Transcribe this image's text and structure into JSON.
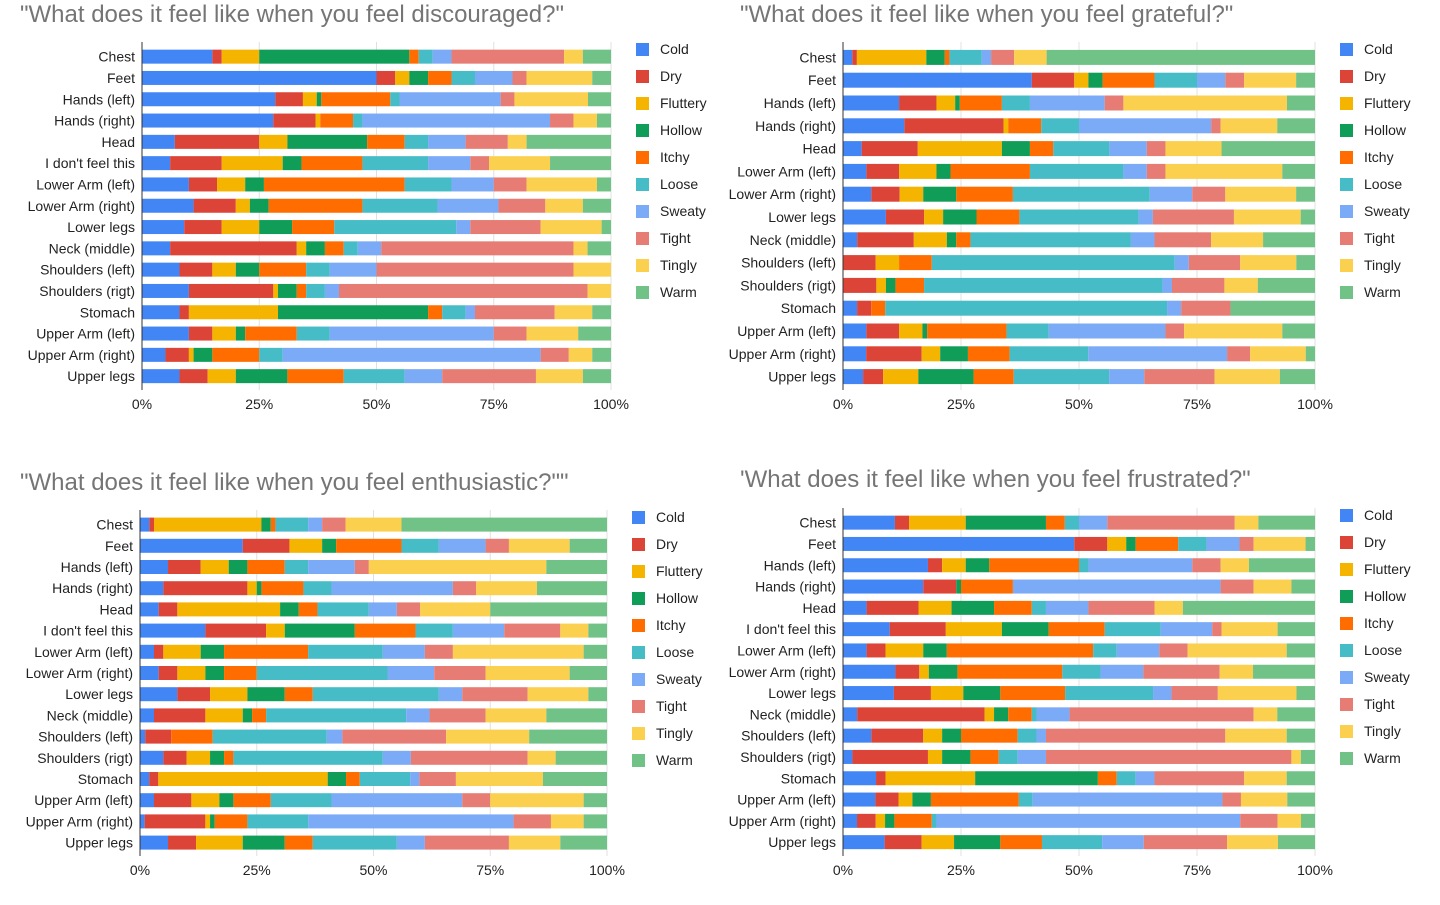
{
  "colors": [
    "#4285f4",
    "#db4437",
    "#f4b400",
    "#0f9d58",
    "#ff6d01",
    "#46bdc6",
    "#7baaf7",
    "#e67c73",
    "#fcd04f",
    "#71c287"
  ],
  "chart_data": [
    {
      "type": "bar",
      "stacked": "percent",
      "orientation": "horizontal",
      "title": "\"What does it feel like when you feel discouraged?\"",
      "legend_position": "right",
      "xlim": [
        0,
        100
      ],
      "x_ticks": [
        "0%",
        "25%",
        "50%",
        "75%",
        "100%"
      ],
      "categories": [
        "Chest",
        "Feet",
        "Hands (left)",
        "Hands (right)",
        "Head",
        "I don't feel this",
        "Lower Arm (left)",
        "Lower Arm (right)",
        "Lower legs",
        "Neck (middle)",
        "Shoulders (left)",
        "Shoulders (rigt)",
        "Stomach",
        "Upper Arm (left)",
        "Upper Arm (right)",
        "Upper legs"
      ],
      "series": [
        {
          "name": "Cold",
          "values": [
            15,
            50,
            29,
            28,
            7,
            6,
            10,
            11,
            9,
            6,
            8,
            10,
            8,
            10,
            5,
            8
          ]
        },
        {
          "name": "Dry",
          "values": [
            2,
            4,
            6,
            9,
            18,
            11,
            6,
            9,
            8,
            27,
            7,
            18,
            2,
            5,
            5,
            6
          ]
        },
        {
          "name": "Fluttery",
          "values": [
            8,
            3,
            3,
            1,
            6,
            13,
            6,
            3,
            8,
            2,
            5,
            1,
            19,
            5,
            1,
            6
          ]
        },
        {
          "name": "Hollow",
          "values": [
            32,
            4,
            1,
            0,
            17,
            4,
            4,
            4,
            7,
            4,
            5,
            4,
            32,
            2,
            4,
            11
          ]
        },
        {
          "name": "Itchy",
          "values": [
            2,
            5,
            15,
            7,
            8,
            13,
            30,
            20,
            9,
            4,
            10,
            2,
            3,
            11,
            10,
            12
          ]
        },
        {
          "name": "Loose",
          "values": [
            3,
            5,
            2,
            2,
            5,
            14,
            10,
            16,
            26,
            3,
            5,
            4,
            5,
            7,
            5,
            13
          ]
        },
        {
          "name": "Sweaty",
          "values": [
            4,
            8,
            22,
            40,
            8,
            9,
            9,
            13,
            3,
            5,
            10,
            3,
            2,
            35,
            55,
            8
          ]
        },
        {
          "name": "Tight",
          "values": [
            24,
            3,
            3,
            5,
            9,
            4,
            7,
            10,
            15,
            41,
            42,
            53,
            17,
            7,
            6,
            20
          ]
        },
        {
          "name": "Tingly",
          "values": [
            4,
            14,
            16,
            5,
            4,
            13,
            15,
            8,
            13,
            3,
            8,
            5,
            8,
            11,
            5,
            10
          ]
        },
        {
          "name": "Warm",
          "values": [
            6,
            4,
            5,
            3,
            18,
            13,
            3,
            6,
            2,
            5,
            0,
            0,
            4,
            7,
            4,
            6
          ]
        }
      ]
    },
    {
      "type": "bar",
      "stacked": "percent",
      "orientation": "horizontal",
      "title": "\"What does it feel like when you feel grateful?\"",
      "legend_position": "right",
      "xlim": [
        0,
        100
      ],
      "x_ticks": [
        "0%",
        "25%",
        "50%",
        "75%",
        "100%"
      ],
      "categories": [
        "Chest",
        "Feet",
        "Hands (left)",
        "Hands (right)",
        "Head",
        "Lower Arm (left)",
        "Lower Arm (right)",
        "Lower legs",
        "Neck (middle)",
        "Shoulders (left)",
        "Shoulders (rigt)",
        "Stomach",
        "Upper Arm (left)",
        "Upper Arm (right)",
        "Upper legs"
      ],
      "series": [
        {
          "name": "Cold",
          "values": [
            2,
            40,
            12,
            13,
            4,
            5,
            6,
            9,
            3,
            0,
            0,
            2,
            5,
            5,
            4
          ]
        },
        {
          "name": "Dry",
          "values": [
            1,
            9,
            8,
            21,
            12,
            7,
            6,
            8,
            12,
            7,
            7,
            2,
            7,
            12,
            4
          ]
        },
        {
          "name": "Fluttery",
          "values": [
            15,
            3,
            4,
            1,
            18,
            8,
            5,
            4,
            7,
            5,
            2,
            0,
            5,
            4,
            7
          ]
        },
        {
          "name": "Hollow",
          "values": [
            4,
            3,
            1,
            0,
            6,
            3,
            7,
            7,
            2,
            0,
            2,
            0,
            1,
            6,
            11
          ]
        },
        {
          "name": "Itchy",
          "values": [
            1,
            11,
            9,
            7,
            5,
            17,
            12,
            9,
            3,
            7,
            6,
            2,
            17,
            9,
            8
          ]
        },
        {
          "name": "Loose",
          "values": [
            7,
            9,
            6,
            8,
            12,
            20,
            29,
            25,
            34,
            52,
            50,
            40,
            9,
            17,
            19
          ]
        },
        {
          "name": "Sweaty",
          "values": [
            2,
            6,
            16,
            28,
            8,
            5,
            9,
            3,
            5,
            3,
            2,
            2,
            25,
            30,
            7
          ]
        },
        {
          "name": "Tight",
          "values": [
            5,
            4,
            4,
            2,
            4,
            4,
            7,
            17,
            12,
            11,
            11,
            7,
            4,
            5,
            14
          ]
        },
        {
          "name": "Tingly",
          "values": [
            7,
            11,
            35,
            12,
            12,
            25,
            15,
            14,
            11,
            12,
            7,
            0,
            21,
            12,
            13
          ]
        },
        {
          "name": "Warm",
          "values": [
            58,
            4,
            6,
            8,
            20,
            7,
            4,
            3,
            11,
            4,
            12,
            12,
            7,
            2,
            7
          ]
        }
      ]
    },
    {
      "type": "bar",
      "stacked": "percent",
      "orientation": "horizontal",
      "title": "\"What does it feel like when you feel enthusiastic?\"\"",
      "legend_position": "right",
      "xlim": [
        0,
        100
      ],
      "x_ticks": [
        "0%",
        "25%",
        "50%",
        "75%",
        "100%"
      ],
      "categories": [
        "Chest",
        "Feet",
        "Hands (left)",
        "Hands (right)",
        "Head",
        "I don't feel this",
        "Lower Arm (left)",
        "Lower Arm (right)",
        "Lower legs",
        "Neck (middle)",
        "Shoulders (left)",
        "Shoulders (rigt)",
        "Stomach",
        "Upper Arm (left)",
        "Upper Arm (right)",
        "Upper legs"
      ],
      "series": [
        {
          "name": "Cold",
          "values": [
            2,
            22,
            6,
            5,
            4,
            14,
            3,
            4,
            8,
            3,
            1,
            5,
            2,
            3,
            1,
            6
          ]
        },
        {
          "name": "Dry",
          "values": [
            1,
            10,
            7,
            18,
            4,
            13,
            2,
            4,
            7,
            11,
            5,
            5,
            2,
            8,
            13,
            6
          ]
        },
        {
          "name": "Fluttery",
          "values": [
            23,
            7,
            6,
            2,
            22,
            4,
            8,
            6,
            8,
            8,
            0,
            5,
            37,
            6,
            1,
            10
          ]
        },
        {
          "name": "Hollow",
          "values": [
            2,
            3,
            4,
            1,
            4,
            15,
            5,
            4,
            8,
            2,
            0,
            3,
            4,
            3,
            1,
            9
          ]
        },
        {
          "name": "Itchy",
          "values": [
            1,
            14,
            8,
            9,
            4,
            13,
            18,
            7,
            6,
            3,
            8,
            2,
            3,
            8,
            7,
            6
          ]
        },
        {
          "name": "Loose",
          "values": [
            7,
            8,
            5,
            6,
            11,
            8,
            16,
            28,
            27,
            30,
            22,
            32,
            11,
            13,
            13,
            18
          ]
        },
        {
          "name": "Sweaty",
          "values": [
            3,
            10,
            10,
            26,
            6,
            11,
            9,
            10,
            5,
            5,
            3,
            6,
            2,
            28,
            44,
            6
          ]
        },
        {
          "name": "Tight",
          "values": [
            5,
            5,
            3,
            5,
            5,
            12,
            6,
            11,
            14,
            12,
            20,
            25,
            8,
            6,
            8,
            18
          ]
        },
        {
          "name": "Tingly",
          "values": [
            12,
            13,
            38,
            13,
            15,
            6,
            28,
            18,
            13,
            13,
            16,
            6,
            19,
            20,
            7,
            11
          ]
        },
        {
          "name": "Warm",
          "values": [
            44,
            8,
            13,
            15,
            25,
            4,
            5,
            8,
            4,
            13,
            15,
            11,
            14,
            5,
            5,
            10
          ]
        }
      ]
    },
    {
      "type": "bar",
      "stacked": "percent",
      "orientation": "horizontal",
      "title": "'What does it feel like when you feel frustrated?\"",
      "legend_position": "right",
      "xlim": [
        0,
        100
      ],
      "x_ticks": [
        "0%",
        "25%",
        "50%",
        "75%",
        "100%"
      ],
      "categories": [
        "Chest",
        "Feet",
        "Hands (left)",
        "Hands (right)",
        "Head",
        "I don't feel this",
        "Lower Arm (left)",
        "Lower Arm (right)",
        "Lower legs",
        "Neck (middle)",
        "Shoulders (left)",
        "Shoulders (rigt)",
        "Stomach",
        "Upper Arm (left)",
        "Upper Arm (right)",
        "Upper legs"
      ],
      "series": [
        {
          "name": "Cold",
          "values": [
            11,
            49,
            18,
            17,
            5,
            10,
            5,
            11,
            11,
            3,
            6,
            2,
            7,
            7,
            3,
            9
          ]
        },
        {
          "name": "Dry",
          "values": [
            3,
            7,
            3,
            7,
            11,
            12,
            4,
            5,
            8,
            27,
            11,
            16,
            2,
            5,
            4,
            8
          ]
        },
        {
          "name": "Fluttery",
          "values": [
            12,
            4,
            5,
            0,
            7,
            12,
            8,
            2,
            7,
            2,
            4,
            3,
            19,
            3,
            2,
            7
          ]
        },
        {
          "name": "Hollow",
          "values": [
            17,
            2,
            5,
            1,
            9,
            10,
            5,
            6,
            8,
            3,
            4,
            6,
            26,
            4,
            2,
            10
          ]
        },
        {
          "name": "Itchy",
          "values": [
            4,
            9,
            19,
            11,
            8,
            12,
            31,
            22,
            14,
            5,
            12,
            6,
            4,
            19,
            8,
            9
          ]
        },
        {
          "name": "Loose",
          "values": [
            3,
            6,
            2,
            0,
            3,
            12,
            5,
            8,
            19,
            1,
            4,
            4,
            4,
            3,
            1,
            13
          ]
        },
        {
          "name": "Sweaty",
          "values": [
            6,
            7,
            22,
            44,
            9,
            11,
            9,
            9,
            4,
            7,
            2,
            6,
            4,
            41,
            65,
            9
          ]
        },
        {
          "name": "Tight",
          "values": [
            27,
            3,
            6,
            7,
            14,
            2,
            6,
            16,
            10,
            39,
            38,
            52,
            19,
            4,
            8,
            18
          ]
        },
        {
          "name": "Tingly",
          "values": [
            5,
            11,
            6,
            8,
            6,
            12,
            21,
            7,
            17,
            5,
            13,
            2,
            9,
            10,
            5,
            11
          ]
        },
        {
          "name": "Warm",
          "values": [
            12,
            2,
            14,
            5,
            28,
            8,
            6,
            13,
            4,
            8,
            6,
            3,
            6,
            6,
            3,
            8
          ]
        }
      ]
    }
  ]
}
